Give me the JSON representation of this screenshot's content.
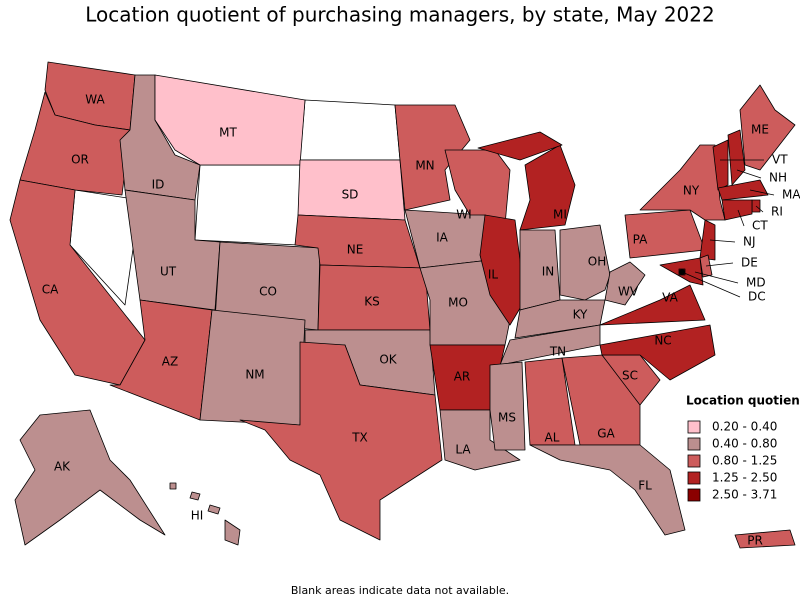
{
  "title": "Location quotient of purchasing managers, by state, May 2022",
  "legend": {
    "title": "Location quotient",
    "items": [
      {
        "label": "0.20 - 0.40",
        "color": "#ffc0cb"
      },
      {
        "label": "0.40 - 0.80",
        "color": "#bc8f8f"
      },
      {
        "label": "0.80 - 1.25",
        "color": "#cd5c5c"
      },
      {
        "label": "1.25 - 2.50",
        "color": "#b22222"
      },
      {
        "label": "2.50 - 3.71",
        "color": "#8b0000"
      }
    ]
  },
  "states": [
    {
      "label": "WA",
      "color": "#cd5c5c"
    },
    {
      "label": "OR",
      "color": "#cd5c5c"
    },
    {
      "label": "CA",
      "color": "#cd5c5c"
    },
    {
      "label": "ID",
      "color": "#bc8f8f"
    },
    {
      "label": "MT",
      "color": "#ffc0cb"
    },
    {
      "label": "SD",
      "color": "#ffc0cb"
    },
    {
      "label": "UT",
      "color": "#bc8f8f"
    },
    {
      "label": "CO",
      "color": "#bc8f8f"
    },
    {
      "label": "AZ",
      "color": "#cd5c5c"
    },
    {
      "label": "NM",
      "color": "#bc8f8f"
    },
    {
      "label": "NE",
      "color": "#cd5c5c"
    },
    {
      "label": "KS",
      "color": "#cd5c5c"
    },
    {
      "label": "OK",
      "color": "#bc8f8f"
    },
    {
      "label": "TX",
      "color": "#cd5c5c"
    },
    {
      "label": "MN",
      "color": "#cd5c5c"
    },
    {
      "label": "IA",
      "color": "#bc8f8f"
    },
    {
      "label": "MO",
      "color": "#bc8f8f"
    },
    {
      "label": "AR",
      "color": "#b22222"
    },
    {
      "label": "LA",
      "color": "#bc8f8f"
    },
    {
      "label": "WI",
      "color": "#cd5c5c"
    },
    {
      "label": "IL",
      "color": "#b22222"
    },
    {
      "label": "MI",
      "color": "#b22222"
    },
    {
      "label": "IN",
      "color": "#bc8f8f"
    },
    {
      "label": "OH",
      "color": "#bc8f8f"
    },
    {
      "label": "KY",
      "color": "#bc8f8f"
    },
    {
      "label": "TN",
      "color": "#bc8f8f"
    },
    {
      "label": "MS",
      "color": "#bc8f8f"
    },
    {
      "label": "AL",
      "color": "#cd5c5c"
    },
    {
      "label": "GA",
      "color": "#cd5c5c"
    },
    {
      "label": "FL",
      "color": "#bc8f8f"
    },
    {
      "label": "SC",
      "color": "#cd5c5c"
    },
    {
      "label": "NC",
      "color": "#b22222"
    },
    {
      "label": "VA",
      "color": "#b22222"
    },
    {
      "label": "WV",
      "color": "#bc8f8f"
    },
    {
      "label": "PA",
      "color": "#cd5c5c"
    },
    {
      "label": "NY",
      "color": "#cd5c5c"
    },
    {
      "label": "ME",
      "color": "#cd5c5c"
    },
    {
      "label": "VT",
      "color": "#b22222"
    },
    {
      "label": "NH",
      "color": "#b22222"
    },
    {
      "label": "MA",
      "color": "#b22222"
    },
    {
      "label": "RI",
      "color": "#b22222"
    },
    {
      "label": "CT",
      "color": "#b22222"
    },
    {
      "label": "NJ",
      "color": "#b22222"
    },
    {
      "label": "DE",
      "color": "#cd5c5c"
    },
    {
      "label": "MD",
      "color": "#b22222"
    },
    {
      "label": "DC",
      "color": "#8b0000"
    },
    {
      "label": "AK",
      "color": "#bc8f8f"
    },
    {
      "label": "HI",
      "color": "#bc8f8f"
    },
    {
      "label": "PR",
      "color": "#cd5c5c"
    }
  ],
  "footnote": "Blank areas indicate data not available."
}
